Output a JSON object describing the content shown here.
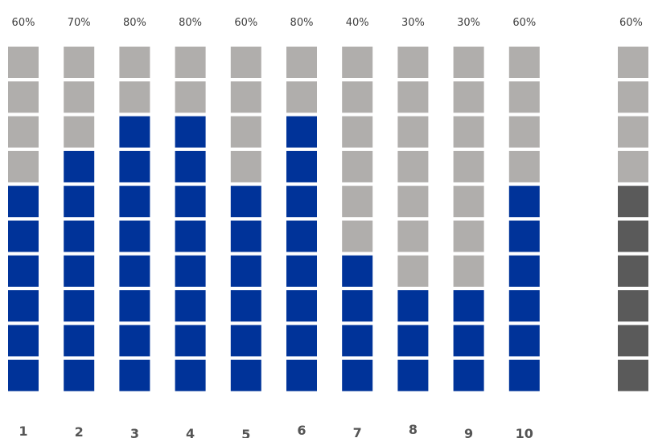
{
  "colors": {
    "filled": "#003399",
    "empty": "#b0aeac",
    "summary_filled": "#5a5a5a",
    "summary_empty": "#b0aeac",
    "label": "#3f3f3f",
    "category_label": "#555555"
  },
  "chart_data": {
    "type": "bar",
    "subtype": "stacked-block-columns",
    "blocks_per_column": 10,
    "categories": [
      "1",
      "2",
      "3",
      "4",
      "5",
      "6",
      "7",
      "8",
      "9",
      "10"
    ],
    "values": [
      60,
      70,
      80,
      80,
      60,
      80,
      40,
      30,
      30,
      60
    ],
    "value_labels": [
      "60%",
      "70%",
      "80%",
      "80%",
      "60%",
      "80%",
      "40%",
      "30%",
      "30%",
      "60%"
    ],
    "ylim": [
      0,
      100
    ],
    "summary": {
      "value": 60,
      "value_label": "60%"
    },
    "grid": false,
    "legend": "none"
  }
}
